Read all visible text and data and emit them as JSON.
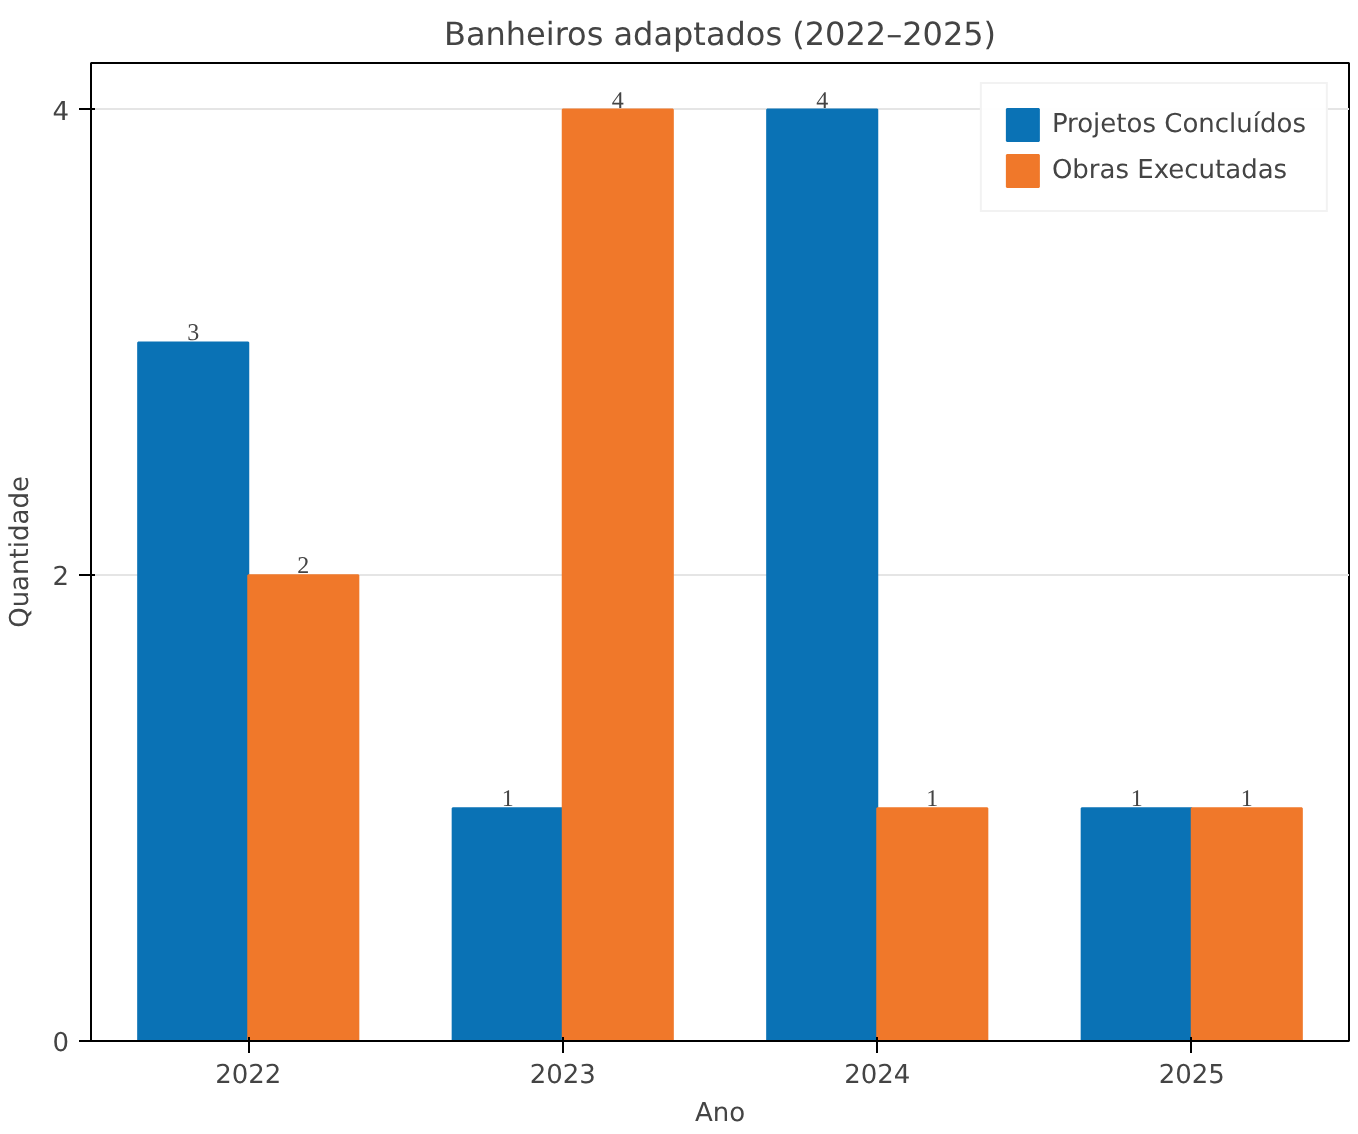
{
  "chart_data": {
    "type": "bar",
    "title": "Banheiros adaptados (2022–2025)",
    "xlabel": "Ano",
    "ylabel": "Quantidade",
    "categories": [
      "2022",
      "2023",
      "2024",
      "2025"
    ],
    "series": [
      {
        "name": "Projetos Concluídos",
        "color": "#0a72b5",
        "values": [
          3,
          1,
          4,
          1
        ]
      },
      {
        "name": "Obras Executadas",
        "color": "#f0782a",
        "values": [
          2,
          4,
          1,
          1
        ]
      }
    ],
    "ylim": [
      0,
      4.2
    ],
    "yticks": [
      0,
      2,
      4
    ],
    "grid": "y",
    "legend": "top right",
    "data_labels": true
  }
}
